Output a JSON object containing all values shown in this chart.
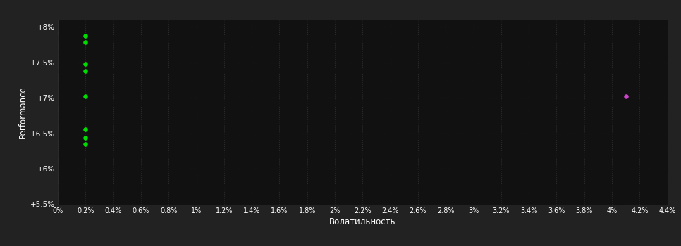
{
  "background_color": "#222222",
  "plot_bg_color": "#111111",
  "text_color": "#ffffff",
  "xlabel": "Волатильность",
  "ylabel": "Performance",
  "green_points": [
    [
      0.002,
      0.0787
    ],
    [
      0.002,
      0.0778
    ],
    [
      0.002,
      0.0748
    ],
    [
      0.002,
      0.0738
    ],
    [
      0.002,
      0.0702
    ],
    [
      0.002,
      0.0655
    ],
    [
      0.002,
      0.0644
    ],
    [
      0.002,
      0.0635
    ]
  ],
  "magenta_points": [
    [
      0.041,
      0.0702
    ]
  ],
  "green_color": "#00dd00",
  "magenta_color": "#cc44cc",
  "xlim": [
    0.0,
    0.044
  ],
  "ylim": [
    0.055,
    0.081
  ],
  "xtick_values": [
    0.0,
    0.002,
    0.004,
    0.006,
    0.008,
    0.01,
    0.012,
    0.014,
    0.016,
    0.018,
    0.02,
    0.022,
    0.024,
    0.026,
    0.028,
    0.03,
    0.032,
    0.034,
    0.036,
    0.038,
    0.04,
    0.042,
    0.044
  ],
  "xtick_labels": [
    "0%",
    "0.2%",
    "0.4%",
    "0.6%",
    "0.8%",
    "1%",
    "1.2%",
    "1.4%",
    "1.6%",
    "1.8%",
    "2%",
    "2.2%",
    "2.4%",
    "2.6%",
    "2.8%",
    "3%",
    "3.2%",
    "3.4%",
    "3.6%",
    "3.8%",
    "4%",
    "4.2%",
    "4.4%"
  ],
  "ytick_values": [
    0.055,
    0.06,
    0.065,
    0.07,
    0.075,
    0.08
  ],
  "ytick_labels": [
    "+5.5%",
    "+6%",
    "+6.5%",
    "+7%",
    "+7.5%",
    "+8%"
  ],
  "figsize": [
    9.66,
    3.5
  ],
  "dpi": 100,
  "marker_size": 22
}
